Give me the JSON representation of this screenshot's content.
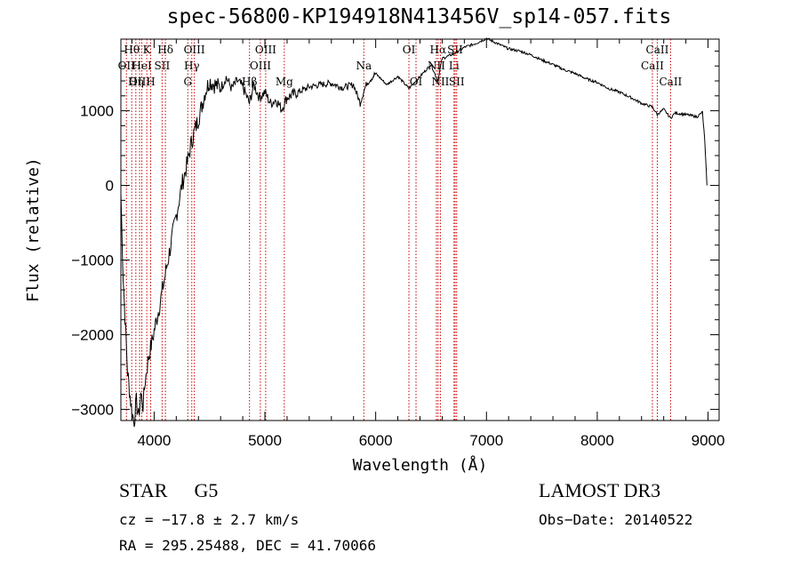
{
  "chart_data": {
    "type": "line",
    "title": "spec-56800-KP194918N413456V_sp14-057.fits",
    "xlabel": "Wavelength (Å)",
    "ylabel": "Flux (relative)",
    "xlim": [
      3700,
      9100
    ],
    "ylim": [
      -3150,
      1960
    ],
    "x_ticks": [
      4000,
      5000,
      6000,
      7000,
      8000,
      9000
    ],
    "x_tick_labels": [
      "4000",
      "5000",
      "6000",
      "7000",
      "8000",
      "9000"
    ],
    "y_ticks": [
      -3000,
      -2000,
      -1000,
      0,
      1000
    ],
    "y_tick_labels": [
      "−3000",
      "−2000",
      "−1000",
      "0",
      "1000"
    ],
    "series": [
      {
        "name": "spectrum",
        "x": [
          3700,
          3720,
          3760,
          3800,
          3820,
          3840,
          3860,
          3880,
          3900,
          3920,
          3950,
          3980,
          4000,
          4050,
          4100,
          4150,
          4200,
          4250,
          4300,
          4340,
          4380,
          4420,
          4460,
          4500,
          4550,
          4600,
          4650,
          4700,
          4750,
          4800,
          4860,
          4900,
          4950,
          5000,
          5050,
          5100,
          5150,
          5200,
          5300,
          5400,
          5500,
          5600,
          5700,
          5800,
          5860,
          5890,
          5920,
          6000,
          6100,
          6200,
          6300,
          6400,
          6500,
          6560,
          6600,
          6700,
          6800,
          6900,
          7000,
          7100,
          7200,
          7300,
          7400,
          7500,
          7600,
          7700,
          7800,
          7900,
          8000,
          8100,
          8200,
          8300,
          8400,
          8498,
          8542,
          8600,
          8662,
          8700,
          8800,
          8900,
          8950,
          8970,
          8990
        ],
        "y": [
          -100,
          -1200,
          -2500,
          -3050,
          -3150,
          -2900,
          -3100,
          -2800,
          -2950,
          -2600,
          -2300,
          -2100,
          -1950,
          -1600,
          -1200,
          -800,
          -400,
          0,
          300,
          600,
          800,
          1000,
          1250,
          1400,
          1350,
          1300,
          1450,
          1300,
          1400,
          1320,
          1100,
          1350,
          1180,
          1250,
          1100,
          1150,
          1020,
          1180,
          1250,
          1320,
          1350,
          1370,
          1310,
          1350,
          1100,
          1250,
          1370,
          1500,
          1350,
          1460,
          1300,
          1460,
          1620,
          1400,
          1700,
          1760,
          1850,
          1900,
          1970,
          1900,
          1830,
          1800,
          1750,
          1680,
          1620,
          1550,
          1500,
          1430,
          1380,
          1300,
          1250,
          1180,
          1100,
          1050,
          950,
          1020,
          900,
          970,
          950,
          920,
          980,
          600,
          0
        ]
      }
    ],
    "lines": [
      {
        "wl": 3750,
        "label": "OII",
        "row": 1
      },
      {
        "wl": 3798,
        "label": "Hθ",
        "row": 0
      },
      {
        "wl": 3835,
        "label": "Hη",
        "row": 2
      },
      {
        "wl": 3869,
        "label": "OIII",
        "row": 2
      },
      {
        "wl": 3889,
        "label": "HeI",
        "row": 1
      },
      {
        "wl": 3934,
        "label": "K",
        "row": 0
      },
      {
        "wl": 3969,
        "label": "H",
        "row": 2
      },
      {
        "wl": 4072,
        "label": "SII",
        "row": 1
      },
      {
        "wl": 4102,
        "label": "Hδ",
        "row": 0
      },
      {
        "wl": 4304,
        "label": "G",
        "row": 2
      },
      {
        "wl": 4340,
        "label": "Hγ",
        "row": 1
      },
      {
        "wl": 4363,
        "label": "OIII",
        "row": 0
      },
      {
        "wl": 4861,
        "label": "Hβ",
        "row": 2
      },
      {
        "wl": 4959,
        "label": "OIII",
        "row": 1
      },
      {
        "wl": 5007,
        "label": "OIII",
        "row": 0
      },
      {
        "wl": 5175,
        "label": "Mg",
        "row": 2
      },
      {
        "wl": 5893,
        "label": "Na",
        "row": 1
      },
      {
        "wl": 6300,
        "label": "OI",
        "row": 0
      },
      {
        "wl": 6364,
        "label": "OI",
        "row": 2
      },
      {
        "wl": 6548,
        "label": "NII",
        "row": 1
      },
      {
        "wl": 6563,
        "label": "Hα",
        "row": 0
      },
      {
        "wl": 6584,
        "label": "NII",
        "row": 2
      },
      {
        "wl": 6707,
        "label": "Li",
        "row": 1
      },
      {
        "wl": 6717,
        "label": "SII",
        "row": 0
      },
      {
        "wl": 6731,
        "label": "SII",
        "row": 2
      },
      {
        "wl": 8498,
        "label": "CaII",
        "row": 1
      },
      {
        "wl": 8542,
        "label": "CaII",
        "row": 0
      },
      {
        "wl": 8662,
        "label": "CaII",
        "row": 2
      }
    ]
  },
  "info": {
    "object_type": "STAR",
    "subclass": "G5",
    "survey": "LAMOST DR3",
    "cz": "cz = −17.8 ± 2.7 km/s",
    "obs_date": "Obs−Date: 20140522",
    "radec": "RA = 295.25488, DEC =  41.70066"
  }
}
